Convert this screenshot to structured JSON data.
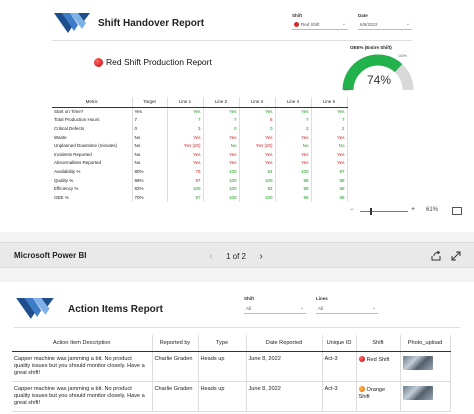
{
  "report1": {
    "title": "Shift Handover Report",
    "filters": {
      "shift_label": "Shift",
      "shift_value": "Red Shift",
      "date_label": "Date",
      "date_value": "6/8/2022"
    },
    "production_title": "Red Shift Production Report",
    "gauge": {
      "label": "OEE% (Entire Shift)",
      "value_text": "74%",
      "value": 74,
      "min_label": "0%",
      "max_label": "100%",
      "fill_color": "#22b24c",
      "track_color": "#d9d9d9"
    },
    "table": {
      "headers": [
        "Metric",
        "Target",
        "Line 1",
        "Line 2",
        "Line 3",
        "Line 4",
        "Line 5"
      ],
      "rows": [
        {
          "metric": "Start on Time?",
          "target": "Yes",
          "lines": [
            [
              "Yes",
              "green"
            ],
            [
              "Yes",
              "green"
            ],
            [
              "Yes",
              "green"
            ],
            [
              "Yes",
              "green"
            ],
            [
              "Yes",
              "green"
            ]
          ]
        },
        {
          "metric": "Total Production Hours",
          "target": "7",
          "lines": [
            [
              "7",
              "green"
            ],
            [
              "7",
              "green"
            ],
            [
              "6",
              "red"
            ],
            [
              "7",
              "green"
            ],
            [
              "7",
              "green"
            ]
          ]
        },
        {
          "metric": "Critical Defects",
          "target": "0",
          "lines": [
            [
              "3",
              "red"
            ],
            [
              "0",
              "green"
            ],
            [
              "0",
              "green"
            ],
            [
              "2",
              "red"
            ],
            [
              "2",
              "red"
            ]
          ]
        },
        {
          "metric": "Waste",
          "target": "No",
          "lines": [
            [
              "Yes",
              "red"
            ],
            [
              "Yes",
              "red"
            ],
            [
              "Yes",
              "red"
            ],
            [
              "Yes",
              "red"
            ],
            [
              "Yes",
              "red"
            ]
          ]
        },
        {
          "metric": "Unplanned Downtime (minutes)",
          "target": "No",
          "lines": [
            [
              "Yes (20)",
              "red"
            ],
            [
              "No",
              "green"
            ],
            [
              "Yes (20)",
              "red"
            ],
            [
              "No",
              "green"
            ],
            [
              "No",
              "green"
            ]
          ]
        },
        {
          "metric": "Incidents Reported",
          "target": "No",
          "lines": [
            [
              "Yes",
              "red"
            ],
            [
              "Yes",
              "red"
            ],
            [
              "Yes",
              "red"
            ],
            [
              "Yes",
              "red"
            ],
            [
              "Yes",
              "red"
            ]
          ]
        },
        {
          "metric": "Abnormalities Reported",
          "target": "No",
          "lines": [
            [
              "Yes",
              "red"
            ],
            [
              "Yes",
              "red"
            ],
            [
              "Yes",
              "red"
            ],
            [
              "Yes",
              "red"
            ],
            [
              "Yes",
              "red"
            ]
          ]
        },
        {
          "metric": "Availability %",
          "target": "80%",
          "lines": [
            [
              "79",
              "red"
            ],
            [
              "100",
              "green"
            ],
            [
              "84",
              "green"
            ],
            [
              "100",
              "green"
            ],
            [
              "97",
              "green"
            ]
          ]
        },
        {
          "metric": "Quality %",
          "target": "98%",
          "lines": [
            [
              "97",
              "red"
            ],
            [
              "100",
              "green"
            ],
            [
              "100",
              "green"
            ],
            [
              "98",
              "green"
            ],
            [
              "98",
              "green"
            ]
          ]
        },
        {
          "metric": "Efficiency %",
          "target": "92%",
          "lines": [
            [
              "100",
              "green"
            ],
            [
              "100",
              "green"
            ],
            [
              "92",
              "green"
            ],
            [
              "98",
              "green"
            ],
            [
              "98",
              "green"
            ]
          ]
        },
        {
          "metric": "OEE %",
          "target": "70%",
          "lines": [
            [
              "87",
              "green"
            ],
            [
              "100",
              "green"
            ],
            [
              "100",
              "green"
            ],
            [
              "98",
              "green"
            ],
            [
              "98",
              "green"
            ]
          ]
        }
      ]
    },
    "zoom": {
      "minus": "−",
      "plus": "+",
      "percent": "61%"
    }
  },
  "powerbi_bar": {
    "brand": "Microsoft Power BI",
    "page_indicator": "1 of 2",
    "prev": "‹",
    "next": "›"
  },
  "report2": {
    "title": "Action Items Report",
    "filters": {
      "shift_label": "Shift",
      "shift_value": "All",
      "lines_label": "Lines",
      "lines_value": "All"
    },
    "table": {
      "headers": [
        "Action Item Description",
        "Reported by",
        "Type",
        "Date Reported",
        "Unique ID",
        "Shift",
        "Photo_upload"
      ],
      "rows": [
        {
          "desc": "Capper machine was jamming a bit. No product quality issues but you should monitor closely. Have a great shift!",
          "by": "Charlie Graden",
          "type": "Heads up",
          "date": "June 8, 2022",
          "uid": "Act-3",
          "shift": "Red Shift",
          "shift_color": "red"
        },
        {
          "desc": "Capper machine was jamming a bit. No product quality issues but you should monitor closely. Have a great shift!",
          "by": "Charlie Graden",
          "type": "Heads up",
          "date": "June 8, 2022",
          "uid": "Act-3",
          "shift": "Orange Shift",
          "shift_color": "orange"
        }
      ]
    }
  }
}
